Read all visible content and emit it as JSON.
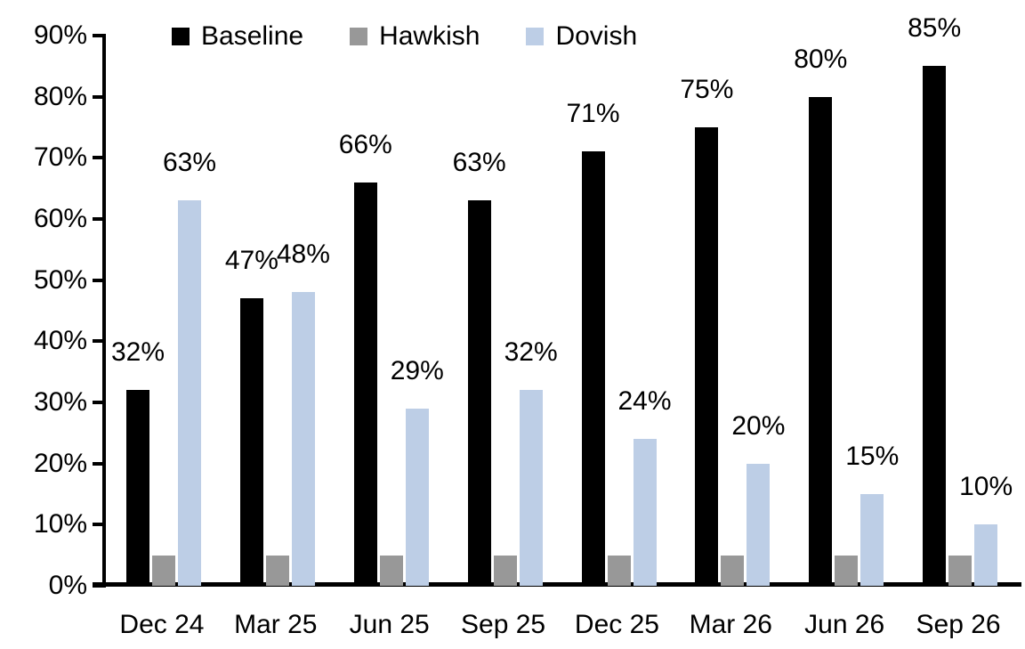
{
  "chart_data": {
    "type": "bar",
    "title": "",
    "xlabel": "",
    "ylabel": "",
    "categories": [
      "Dec 24",
      "Mar 25",
      "Jun 25",
      "Sep 25",
      "Dec 25",
      "Mar 26",
      "Jun 26",
      "Sep 26"
    ],
    "series": [
      {
        "name": "Baseline",
        "color": "#000000",
        "values": [
          32,
          47,
          66,
          63,
          71,
          75,
          80,
          85
        ],
        "data_labels": [
          "32%",
          "47%",
          "66%",
          "63%",
          "71%",
          "75%",
          "80%",
          "85%"
        ]
      },
      {
        "name": "Hawkish",
        "color": "#989898",
        "values": [
          5,
          5,
          5,
          5,
          5,
          5,
          5,
          5
        ],
        "data_labels": [
          "",
          "",
          "",
          "",
          "",
          "",
          "",
          ""
        ]
      },
      {
        "name": "Dovish",
        "color": "#BDCEE6",
        "values": [
          63,
          48,
          29,
          32,
          24,
          20,
          15,
          10
        ],
        "data_labels": [
          "63%",
          "48%",
          "29%",
          "32%",
          "24%",
          "20%",
          "15%",
          "10%"
        ]
      }
    ],
    "ylim": [
      0,
      90
    ],
    "y_tick_step": 10,
    "y_tick_labels": [
      "0%",
      "10%",
      "20%",
      "30%",
      "40%",
      "50%",
      "60%",
      "70%",
      "80%",
      "90%"
    ],
    "grid": false,
    "legend_position": "top",
    "axis_color": "#000000",
    "label_text_color": "#000000"
  }
}
